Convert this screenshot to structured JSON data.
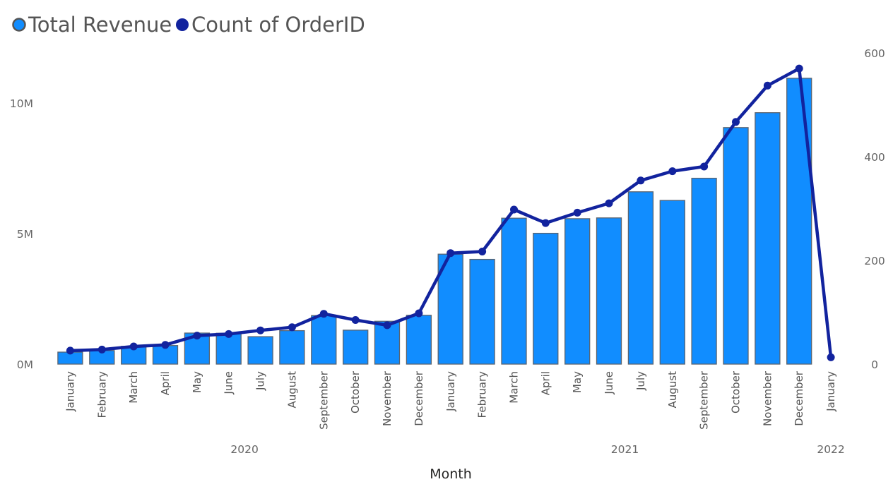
{
  "chart_data": {
    "type": "bar",
    "legend": {
      "placement": "top-left",
      "items": [
        {
          "label": "Total Revenue",
          "color": "#118DFF"
        },
        {
          "label": "Count of OrderID",
          "color": "#12239E"
        }
      ]
    },
    "xlabel": "Month",
    "categories": [
      "January",
      "February",
      "March",
      "April",
      "May",
      "June",
      "July",
      "August",
      "September",
      "October",
      "November",
      "December",
      "January",
      "February",
      "March",
      "April",
      "May",
      "June",
      "July",
      "August",
      "September",
      "October",
      "November",
      "December",
      "January"
    ],
    "year_groups": [
      {
        "label": "2020",
        "start": 0,
        "end": 11
      },
      {
        "label": "2021",
        "start": 12,
        "end": 23
      },
      {
        "label": "2022",
        "start": 24,
        "end": 24
      }
    ],
    "series": [
      {
        "name": "Total Revenue",
        "type": "bar",
        "axis": "left",
        "color": "#118DFF",
        "values": [
          0.46,
          0.52,
          0.68,
          0.71,
          1.19,
          1.18,
          1.05,
          1.28,
          1.86,
          1.3,
          1.64,
          1.87,
          4.21,
          4.01,
          5.59,
          5.01,
          5.57,
          5.6,
          6.6,
          6.27,
          7.12,
          9.06,
          9.63,
          10.95,
          0
        ]
      },
      {
        "name": "Count of OrderID",
        "type": "line",
        "axis": "right",
        "color": "#12239E",
        "values": [
          26,
          28,
          34,
          37,
          55,
          58,
          65,
          71,
          97,
          85,
          75,
          98,
          214,
          217,
          298,
          272,
          292,
          310,
          354,
          372,
          381,
          467,
          537,
          570,
          13
        ]
      }
    ],
    "y_left": {
      "range": [
        0,
        11.0
      ],
      "unit": "M",
      "ticks": [
        {
          "value": 0,
          "label": "0M"
        },
        {
          "value": 5,
          "label": "5M"
        },
        {
          "value": 10,
          "label": "10M"
        }
      ]
    },
    "y_right": {
      "range": [
        0,
        600
      ],
      "ticks": [
        {
          "value": 0,
          "label": "0"
        },
        {
          "value": 200,
          "label": "200"
        },
        {
          "value": 400,
          "label": "400"
        },
        {
          "value": 600,
          "label": "600"
        }
      ]
    },
    "grid": false
  }
}
